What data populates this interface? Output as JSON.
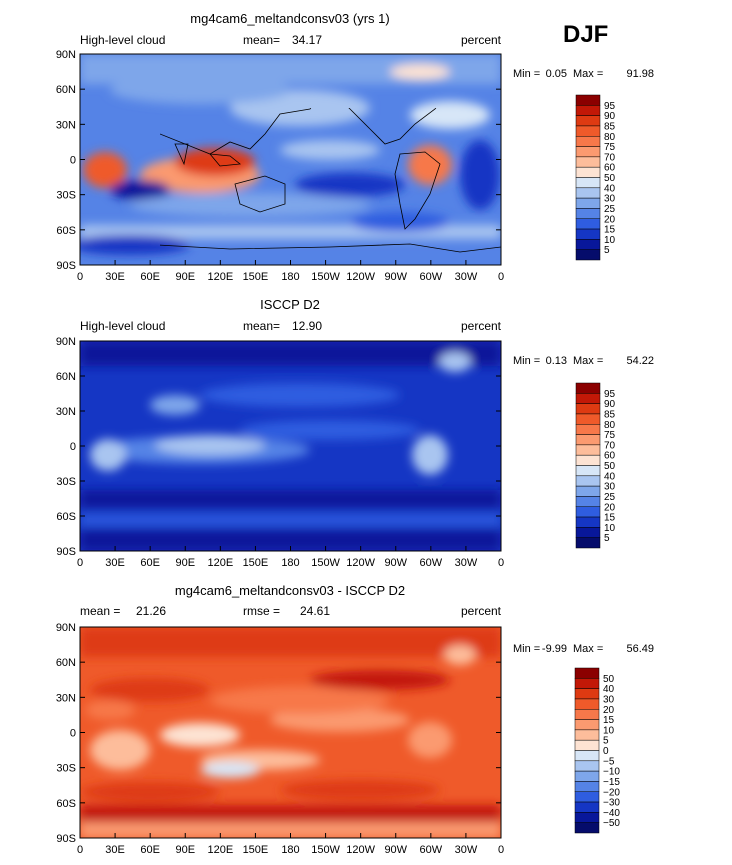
{
  "season": "DJF",
  "chart_data": [
    {
      "type": "heatmap",
      "title": "mg4cam6_meltandconsv03 (yrs 1)",
      "variable": "High-level cloud",
      "mean_label": "mean=",
      "mean": "34.17",
      "units": "percent",
      "min_label": "Min =",
      "min": "0.05",
      "max_label": "Max =",
      "max": "91.98",
      "x_ticks": [
        "0",
        "30E",
        "60E",
        "90E",
        "120E",
        "150E",
        "180",
        "150W",
        "120W",
        "90W",
        "60W",
        "30W",
        "0"
      ],
      "y_ticks": [
        "90N",
        "60N",
        "30N",
        "0",
        "30S",
        "60S",
        "90S"
      ],
      "legend_levels": [
        "95",
        "90",
        "85",
        "80",
        "75",
        "70",
        "60",
        "50",
        "40",
        "30",
        "25",
        "20",
        "15",
        "10",
        "5"
      ],
      "colors": [
        "#8b0000",
        "#c21807",
        "#de3a12",
        "#ef5a2a",
        "#f7784a",
        "#fb9a70",
        "#fdbd9b",
        "#fde3d3",
        "#d7e6f7",
        "#a9c5f0",
        "#7ea6ea",
        "#5583e6",
        "#2f5de0",
        "#1536c4",
        "#08179a",
        "#050c6b"
      ]
    },
    {
      "type": "heatmap",
      "title": "ISCCP D2",
      "variable": "High-level cloud",
      "mean_label": "mean=",
      "mean": "12.90",
      "units": "percent",
      "min_label": "Min =",
      "min": "0.13",
      "max_label": "Max =",
      "max": "54.22",
      "x_ticks": [
        "0",
        "30E",
        "60E",
        "90E",
        "120E",
        "150E",
        "180",
        "150W",
        "120W",
        "90W",
        "60W",
        "30W",
        "0"
      ],
      "y_ticks": [
        "90N",
        "60N",
        "30N",
        "0",
        "30S",
        "60S",
        "90S"
      ],
      "legend_levels": [
        "95",
        "90",
        "85",
        "80",
        "75",
        "70",
        "60",
        "50",
        "40",
        "30",
        "25",
        "20",
        "15",
        "10",
        "5"
      ],
      "colors": [
        "#8b0000",
        "#c21807",
        "#de3a12",
        "#ef5a2a",
        "#f7784a",
        "#fb9a70",
        "#fdbd9b",
        "#fde3d3",
        "#d7e6f7",
        "#a9c5f0",
        "#7ea6ea",
        "#5583e6",
        "#2f5de0",
        "#1536c4",
        "#08179a",
        "#050c6b"
      ]
    },
    {
      "type": "heatmap",
      "title": "mg4cam6_meltandconsv03 - ISCCP D2",
      "variable": "",
      "mean_label": "mean =",
      "mean": "21.26",
      "rmse_label": "rmse =",
      "rmse": "24.61",
      "units": "percent",
      "min_label": "Min =",
      "min": "-9.99",
      "max_label": "Max =",
      "max": "56.49",
      "x_ticks": [
        "0",
        "30E",
        "60E",
        "90E",
        "120E",
        "150E",
        "180",
        "150W",
        "120W",
        "90W",
        "60W",
        "30W",
        "0"
      ],
      "y_ticks": [
        "90N",
        "60N",
        "30N",
        "0",
        "30S",
        "60S",
        "90S"
      ],
      "legend_levels": [
        "50",
        "40",
        "30",
        "20",
        "15",
        "10",
        "5",
        "0",
        "−5",
        "−10",
        "−15",
        "−20",
        "−30",
        "−40",
        "−50"
      ],
      "colors": [
        "#8b0000",
        "#c21807",
        "#de3a12",
        "#ef5a2a",
        "#f7784a",
        "#fb9a70",
        "#fdbd9b",
        "#fde3d3",
        "#d7e6f7",
        "#a9c5f0",
        "#7ea6ea",
        "#5583e6",
        "#2f5de0",
        "#1536c4",
        "#08179a",
        "#050c6b"
      ]
    }
  ]
}
